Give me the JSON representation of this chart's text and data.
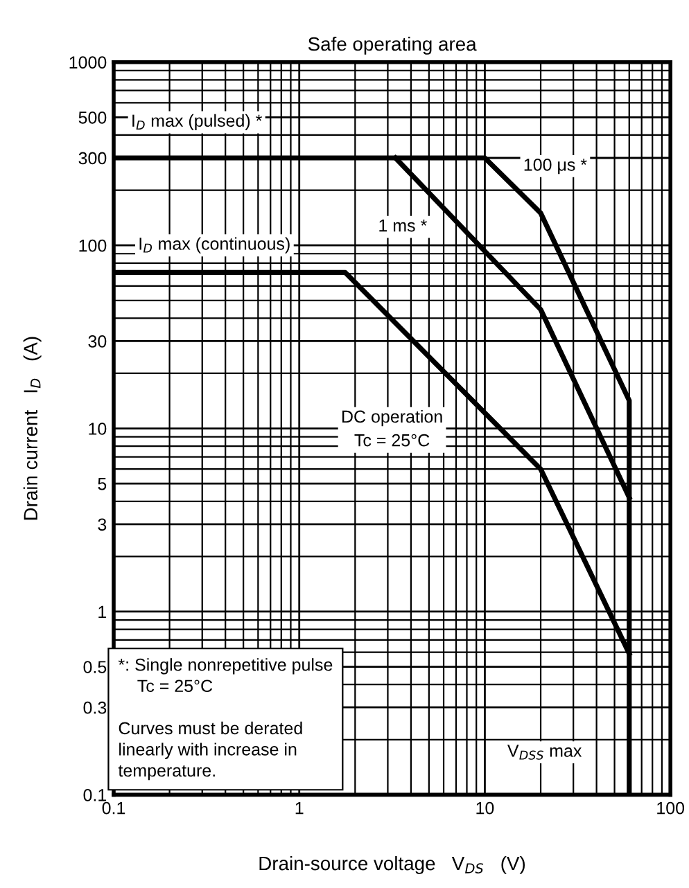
{
  "chart_data": {
    "type": "line",
    "title": "Safe operating area",
    "xlabel": "Drain-source voltage   V$_{DS}$   (V)",
    "ylabel": "Drain current   I$_{D}$   (A)",
    "log": "xy",
    "xlim": [
      0.1,
      100
    ],
    "ylim": [
      0.1,
      1000
    ],
    "xticks": [
      0.1,
      1,
      10,
      100
    ],
    "yticks": [
      0.1,
      0.3,
      0.5,
      1,
      3,
      5,
      10,
      30,
      100,
      300,
      500,
      1000
    ],
    "grid": true,
    "legend": false,
    "marker": "none",
    "line_style": "solid",
    "series": [
      {
        "color": "#000000",
        "x": [
          0.1,
          10,
          20,
          60,
          60
        ],
        "values": [
          300,
          300,
          150,
          14.2,
          0.1
        ]
      },
      {
        "color": "#000000",
        "x": [
          3.3,
          20,
          60
        ],
        "values": [
          300,
          44.6,
          4.2
        ]
      },
      {
        "color": "#000000",
        "x": [
          0.1,
          1.77,
          20,
          60
        ],
        "values": [
          71,
          71,
          6,
          0.59
        ]
      }
    ],
    "annotations": [
      "I$_{D}$ max (pulsed) *",
      "100 μs *",
      "1 ms *",
      "I$_{D}$ max (continuous)",
      "DC operation\nTc = 25°C",
      "V$_{DSS}$ max",
      "*: Single nonrepetitive pulse\n    Tc = 25°C\n\nCurves must be derated\nlinearly with increase in\ntemperature."
    ]
  }
}
